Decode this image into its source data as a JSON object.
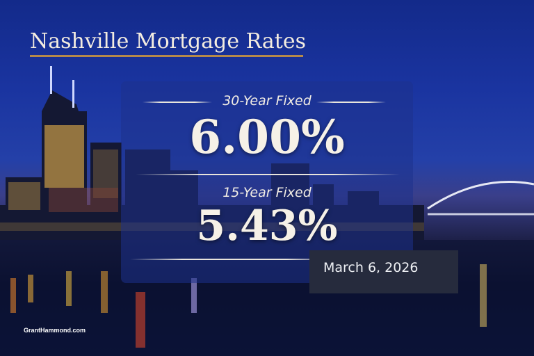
{
  "title": "Nashville Mortgage Rates",
  "rates": [
    {
      "label": "30-Year Fixed",
      "value": "6.00%"
    },
    {
      "label": "15-Year Fixed",
      "value": "5.43%"
    }
  ],
  "date": "March 6, 2026",
  "watermark": "GrantHammond.com",
  "colors": {
    "accent_rule": "#b58a4a",
    "date_box": "#262b3d",
    "text": "#f6f1e7"
  }
}
